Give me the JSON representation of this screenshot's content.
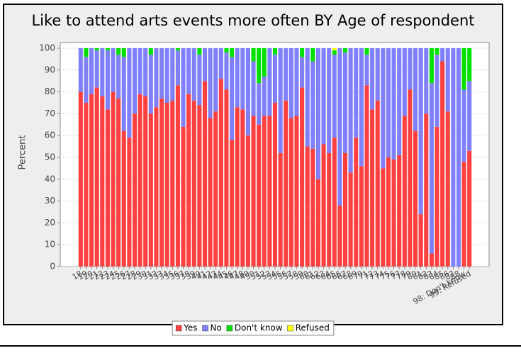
{
  "chart_data": {
    "type": "stacked_bar",
    "title": "Like to attend arts events more often BY Age of respondent",
    "y_label": "Percent",
    "categories": [
      "18",
      "19",
      "20",
      "21",
      "22",
      "23",
      "24",
      "25",
      "26",
      "27",
      "28",
      "29",
      "30",
      "31",
      "32",
      "33",
      "34",
      "35",
      "36",
      "37",
      "38",
      "39",
      "40",
      "41",
      "42",
      "43",
      "44",
      "45",
      "46",
      "47",
      "48",
      "49",
      "50",
      "51",
      "52",
      "53",
      "54",
      "55",
      "56",
      "57",
      "58",
      "59",
      "60",
      "61",
      "62",
      "63",
      "64",
      "65",
      "66",
      "67",
      "68",
      "69",
      "70",
      "71",
      "72",
      "73",
      "74",
      "75",
      "76",
      "77",
      "78",
      "79",
      "80",
      "81",
      "82",
      "83",
      "84",
      "85",
      "86",
      "87",
      "88",
      "98: Don't know",
      "99: Refused"
    ],
    "series": [
      {
        "name": "Yes",
        "color": "#ff4040",
        "values": [
          80,
          75,
          79,
          82,
          78,
          72,
          80,
          77,
          62,
          59,
          70,
          79,
          78,
          70,
          73,
          77,
          75,
          76,
          83,
          64,
          79,
          76,
          74,
          85,
          68,
          71,
          86,
          81,
          58,
          73,
          72,
          60,
          69,
          65,
          69,
          69,
          75,
          52,
          76,
          68,
          69,
          82,
          55,
          54,
          40,
          56,
          52,
          59,
          28,
          52,
          43,
          59,
          46,
          83,
          72,
          76,
          45,
          50,
          49,
          51,
          69,
          81,
          62,
          24,
          70,
          6,
          64,
          94,
          71,
          0,
          0,
          48,
          53
        ]
      },
      {
        "name": "No",
        "color": "#8080ff",
        "values": [
          20,
          21,
          21,
          17,
          22,
          27,
          20,
          20,
          34,
          41,
          30,
          21,
          22,
          27,
          27,
          23,
          25,
          24,
          16,
          36,
          21,
          24,
          23,
          15,
          32,
          29,
          14,
          17,
          38,
          27,
          28,
          40,
          25,
          19,
          18,
          31,
          22,
          48,
          24,
          32,
          31,
          14,
          45,
          40,
          60,
          44,
          48,
          38,
          72,
          46,
          57,
          41,
          54,
          14,
          28,
          24,
          55,
          50,
          51,
          49,
          31,
          19,
          38,
          76,
          30,
          78,
          33,
          6,
          29,
          100,
          100,
          33,
          32
        ]
      },
      {
        "name": "Don't know",
        "color": "#00e000",
        "values": [
          0,
          4,
          0,
          1,
          0,
          1,
          0,
          3,
          4,
          0,
          0,
          0,
          0,
          3,
          0,
          0,
          0,
          0,
          1,
          0,
          0,
          0,
          3,
          0,
          0,
          0,
          0,
          2,
          4,
          0,
          0,
          0,
          6,
          16,
          13,
          0,
          3,
          0,
          0,
          0,
          0,
          4,
          0,
          6,
          0,
          0,
          0,
          2,
          0,
          2,
          0,
          0,
          0,
          3,
          0,
          0,
          0,
          0,
          0,
          0,
          0,
          0,
          0,
          0,
          0,
          16,
          3,
          0,
          0,
          0,
          0,
          19,
          15
        ]
      },
      {
        "name": "Refused",
        "color": "#ffff00",
        "values": [
          0,
          0,
          0,
          0,
          0,
          0,
          0,
          0,
          0,
          0,
          0,
          0,
          0,
          0,
          0,
          0,
          0,
          0,
          0,
          0,
          0,
          0,
          0,
          0,
          0,
          0,
          0,
          0,
          0,
          0,
          0,
          0,
          0,
          0,
          0,
          0,
          0,
          0,
          0,
          0,
          0,
          0,
          0,
          0,
          0,
          0,
          0,
          1,
          0,
          0,
          0,
          0,
          0,
          0,
          0,
          0,
          0,
          0,
          0,
          0,
          0,
          0,
          0,
          0,
          0,
          0,
          0,
          0,
          0,
          0,
          0,
          0,
          0
        ]
      }
    ],
    "ylim": [
      0,
      100
    ],
    "yticks": [
      0,
      10,
      20,
      30,
      40,
      50,
      60,
      70,
      80,
      90,
      100
    ],
    "grid": true,
    "legend": "bottom"
  }
}
